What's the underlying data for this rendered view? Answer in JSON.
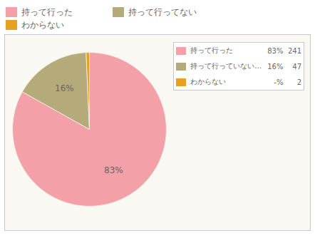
{
  "chart_data": {
    "type": "pie",
    "categories": [
      "持って行った",
      "持って行ってない",
      "わからない"
    ],
    "values": [
      241,
      47,
      2
    ],
    "colors": [
      "#f4a0a8",
      "#b5aa7a",
      "#e8a020"
    ],
    "slice_labels": [
      {
        "value": 83,
        "label": "83%"
      },
      {
        "value": 16,
        "label": "16%"
      },
      null
    ],
    "legend": "top",
    "table": {
      "labels": [
        "持って行った",
        "持って行っていない...",
        "わからない"
      ],
      "percentages": [
        {
          "value": 83,
          "label": "83%"
        },
        {
          "value": 16,
          "label": "16%"
        },
        {
          "value": null,
          "label": "-%"
        }
      ]
    }
  }
}
